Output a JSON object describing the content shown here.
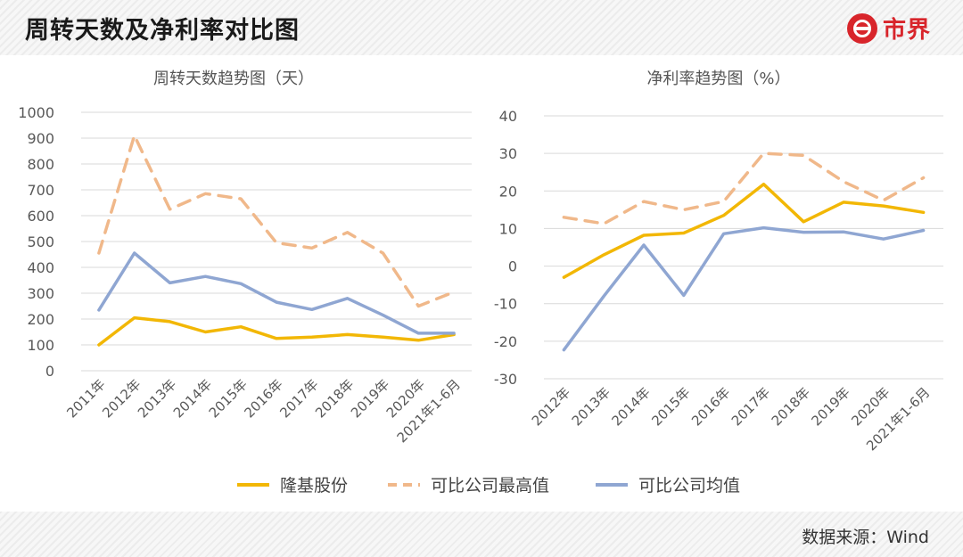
{
  "header": {
    "title": "周转天数及净利率对比图",
    "brand": "市界"
  },
  "footer": {
    "source": "数据来源：Wind"
  },
  "legend": [
    {
      "name": "隆基股份",
      "color": "#f2b705",
      "dash": false
    },
    {
      "name": "可比公司最高值",
      "color": "#f0b88a",
      "dash": true
    },
    {
      "name": "可比公司均值",
      "color": "#8fa6d2",
      "dash": false
    }
  ],
  "colors": {
    "longi": "#f2b705",
    "peer_max": "#f0b88a",
    "peer_avg": "#8fa6d2",
    "grid": "#d9d9d9",
    "axis_text": "#595959"
  },
  "chart_data": [
    {
      "type": "line",
      "title": "周转天数趋势图（天）",
      "categories": [
        "2011年",
        "2012年",
        "2013年",
        "2014年",
        "2015年",
        "2016年",
        "2017年",
        "2018年",
        "2019年",
        "2020年",
        "2021年1-6月"
      ],
      "ylim": [
        0,
        1000
      ],
      "yticks": [
        0,
        100,
        200,
        300,
        400,
        500,
        600,
        700,
        800,
        900,
        1000
      ],
      "series": [
        {
          "name": "隆基股份",
          "values": [
            100,
            205,
            190,
            150,
            170,
            125,
            130,
            140,
            130,
            118,
            140
          ]
        },
        {
          "name": "可比公司最高值",
          "values": [
            455,
            910,
            625,
            685,
            665,
            495,
            475,
            535,
            455,
            250,
            305
          ]
        },
        {
          "name": "可比公司均值",
          "values": [
            235,
            455,
            340,
            365,
            337,
            265,
            237,
            280,
            215,
            145,
            145
          ]
        }
      ]
    },
    {
      "type": "line",
      "title": "净利率趋势图（%）",
      "categories": [
        "2012年",
        "2013年",
        "2014年",
        "2015年",
        "2016年",
        "2017年",
        "2018年",
        "2019年",
        "2020年",
        "2021年1-6月"
      ],
      "ylim": [
        -30,
        40
      ],
      "yticks": [
        -30,
        -20,
        -10,
        0,
        10,
        20,
        30,
        40
      ],
      "series": [
        {
          "name": "隆基股份",
          "values": [
            -3,
            3,
            8.2,
            8.8,
            13.5,
            21.8,
            11.8,
            17,
            16,
            14.3
          ]
        },
        {
          "name": "可比公司最高值",
          "values": [
            13,
            11.3,
            17.2,
            15,
            17.2,
            30,
            29.5,
            22.5,
            17.5,
            23.5
          ]
        },
        {
          "name": "可比公司均值",
          "values": [
            -22.3,
            -8,
            5.6,
            -7.8,
            8.6,
            10.2,
            9,
            9.1,
            7.2,
            9.5
          ]
        }
      ]
    }
  ]
}
